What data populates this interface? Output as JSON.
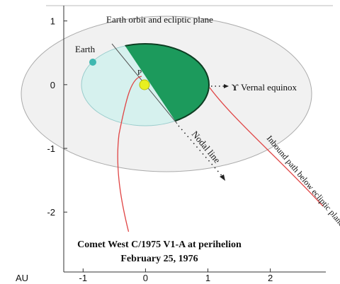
{
  "header": {
    "title": "Comet West C/1975 V1-A at perihelion",
    "date": "February 25, 1976"
  },
  "labels": {
    "orbit": "Earth orbit and ecliptic plane",
    "earth": "Earth",
    "perihelion": "P",
    "equinox_symbol": "ϒ",
    "equinox": "Vernal equinox",
    "nodal": "Nodal line",
    "inbound": "Inbound path below ecliptic plane"
  },
  "axes": {
    "xlabel": "AU",
    "xlim": [
      -1.31,
      2.89
    ],
    "ylim": [
      -2.94,
      1.24
    ],
    "xticks": [
      -1,
      0,
      1,
      2
    ],
    "yticks": [
      1,
      0,
      -1,
      -2
    ]
  }
}
